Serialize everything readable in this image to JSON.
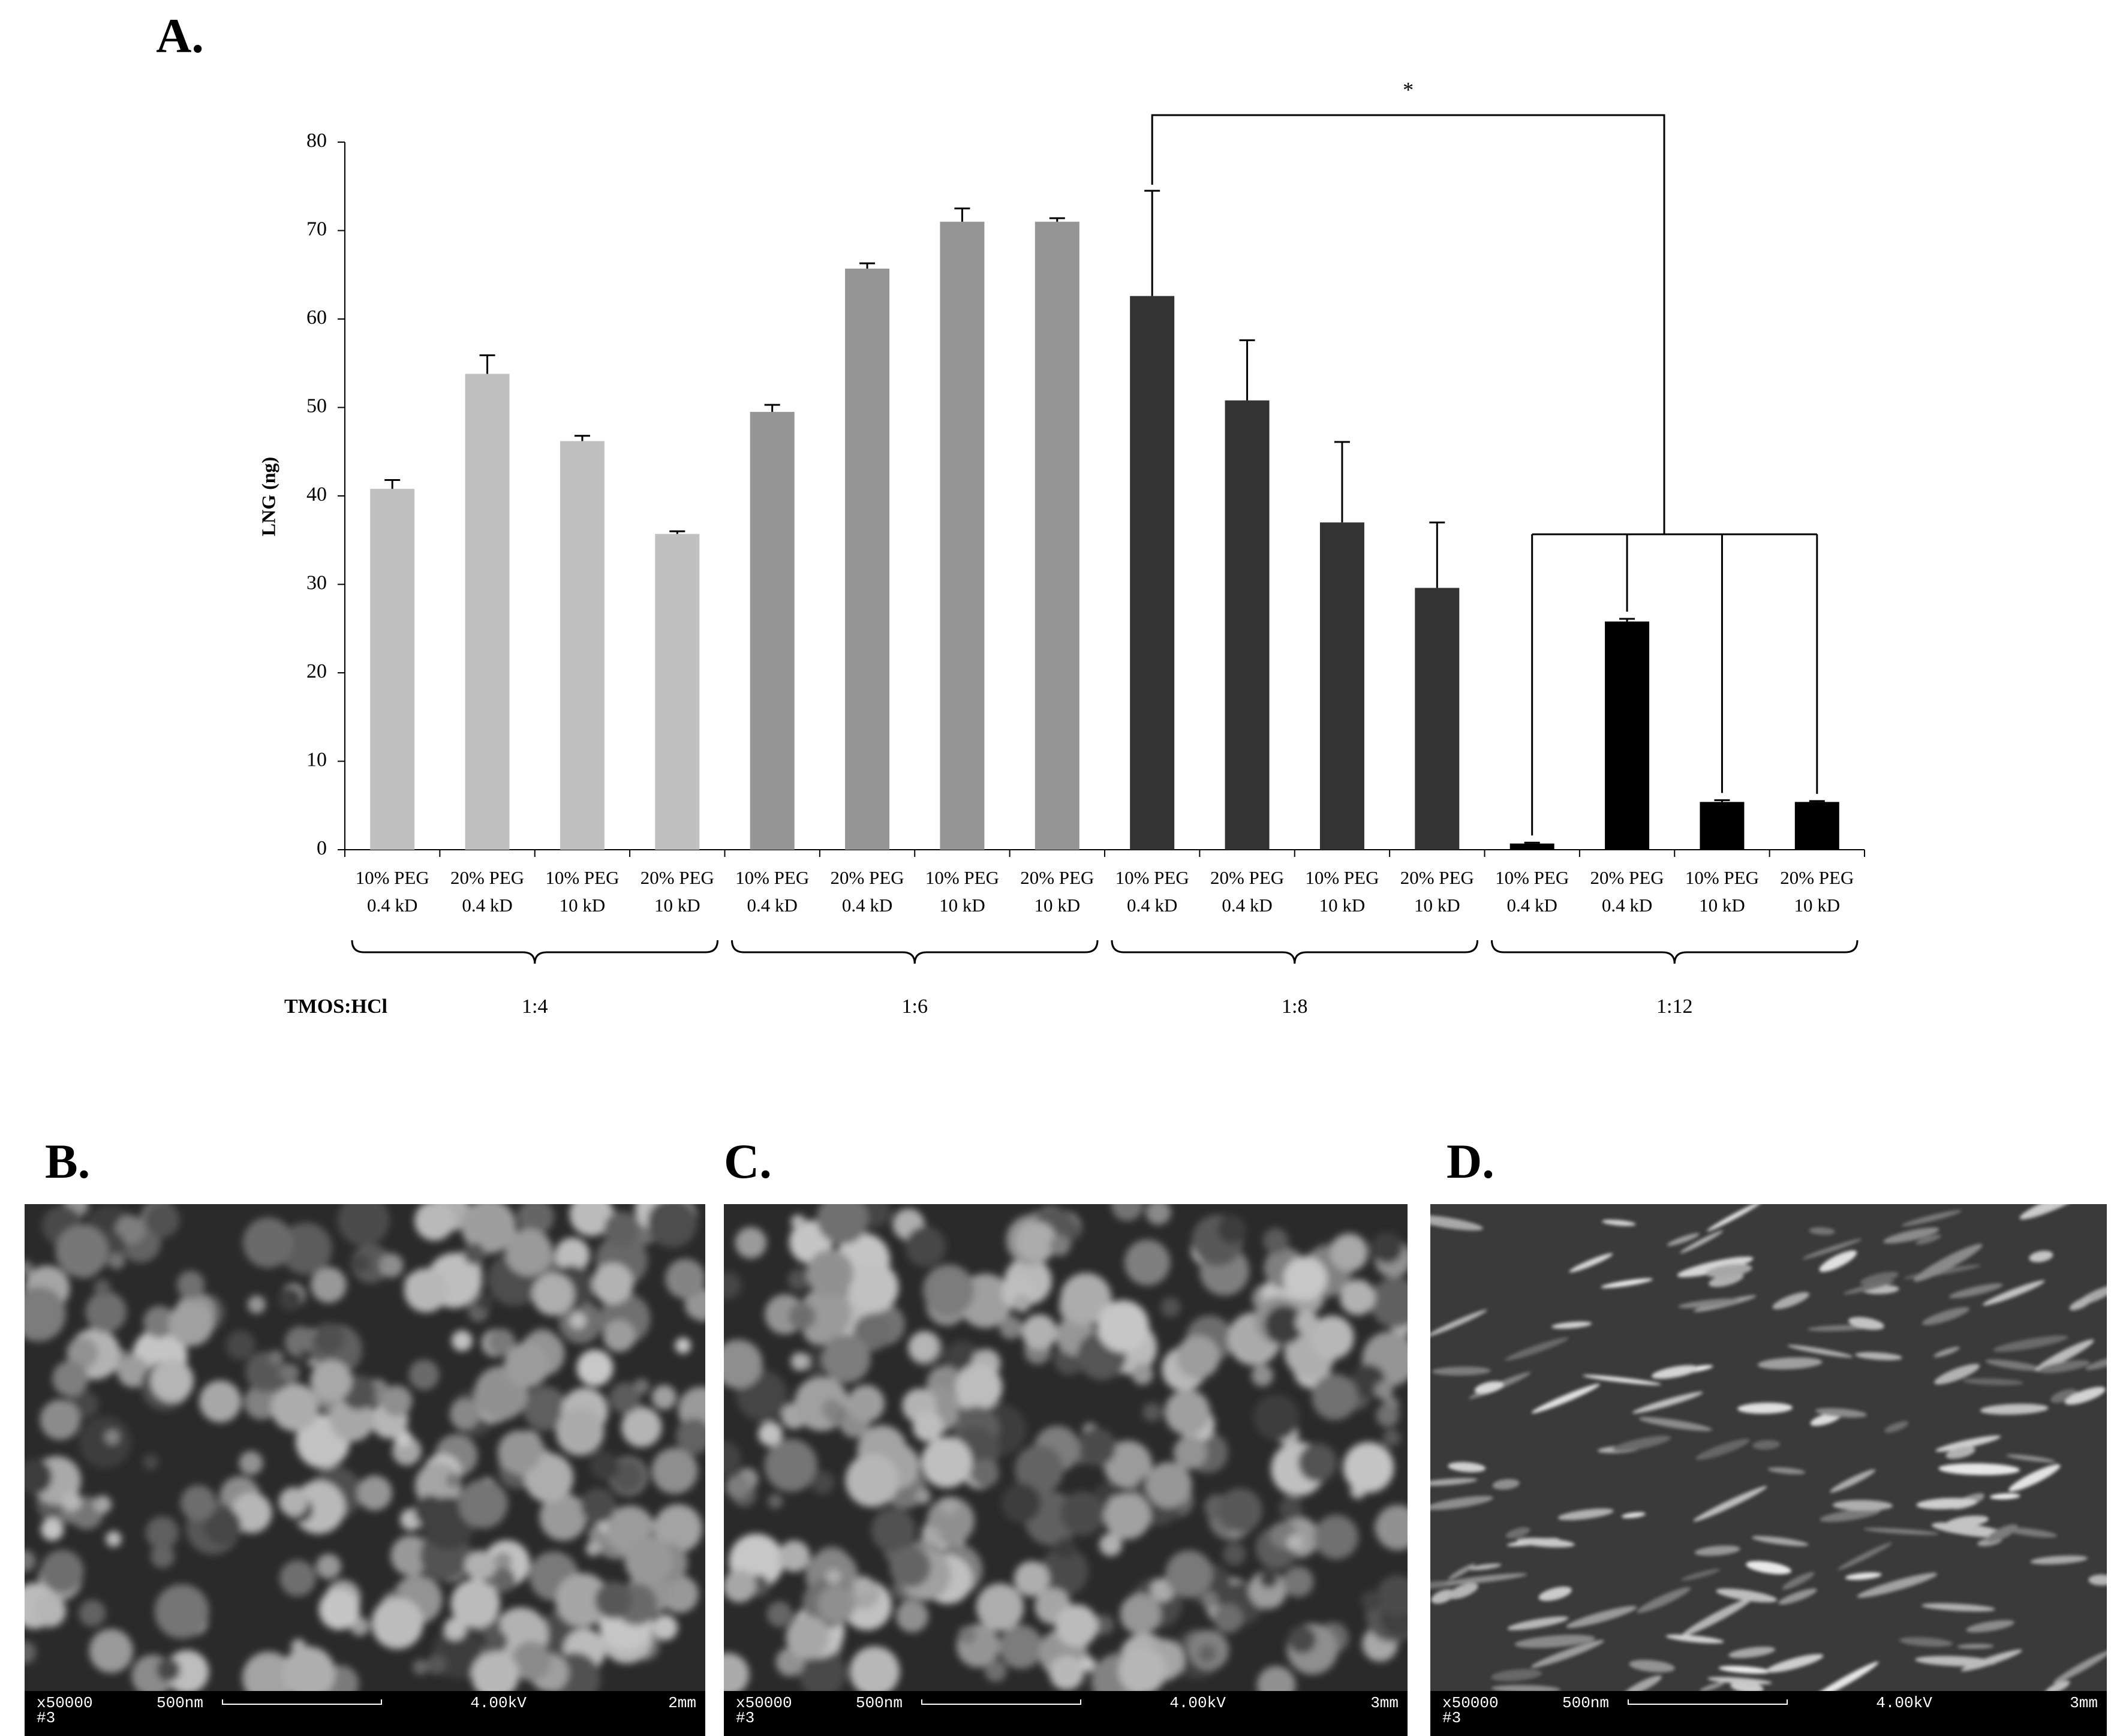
{
  "chart_data": {
    "type": "bar",
    "panel_label": "A.",
    "y_label": "LNG (ng)",
    "ylim": [
      0,
      80
    ],
    "yticks": [
      0,
      10,
      20,
      30,
      40,
      50,
      60,
      70,
      80
    ],
    "group_axis_label": "TMOS:HCl",
    "significance_label": "*",
    "groups": [
      {
        "name": "1:4",
        "color": "#c0c0c0",
        "categories": [
          [
            "10% PEG",
            "0.4 kD"
          ],
          [
            "20% PEG",
            "0.4 kD"
          ],
          [
            "10% PEG",
            "10 kD"
          ],
          [
            "20% PEG",
            "10 kD"
          ]
        ],
        "values": [
          40.8,
          53.8,
          46.2,
          35.7
        ],
        "errors": [
          1.0,
          2.1,
          0.6,
          0.3
        ]
      },
      {
        "name": "1:6",
        "color": "#959595",
        "categories": [
          [
            "10% PEG",
            "0.4 kD"
          ],
          [
            "20% PEG",
            "0.4 kD"
          ],
          [
            "10% PEG",
            "10 kD"
          ],
          [
            "20% PEG",
            "10 kD"
          ]
        ],
        "values": [
          49.5,
          65.7,
          71.0,
          71.0
        ],
        "errors": [
          0.8,
          0.6,
          1.5,
          0.4
        ]
      },
      {
        "name": "1:8",
        "color": "#333333",
        "categories": [
          [
            "10% PEG",
            "0.4 kD"
          ],
          [
            "20% PEG",
            "0.4 kD"
          ],
          [
            "10% PEG",
            "10 kD"
          ],
          [
            "20% PEG",
            "10 kD"
          ]
        ],
        "values": [
          62.6,
          50.8,
          37.0,
          29.6
        ],
        "errors": [
          11.9,
          6.8,
          9.1,
          7.4
        ]
      },
      {
        "name": "1:12",
        "color": "#000000",
        "categories": [
          [
            "10% PEG",
            "0.4 kD"
          ],
          [
            "20% PEG",
            "0.4 kD"
          ],
          [
            "10% PEG",
            "10 kD"
          ],
          [
            "20% PEG",
            "10 kD"
          ]
        ],
        "values": [
          0.7,
          25.8,
          5.4,
          5.4
        ],
        "errors": [
          0.1,
          0.3,
          0.2,
          0.1
        ]
      }
    ]
  },
  "images": [
    {
      "label": "B.",
      "info": {
        "magnification": "x50000",
        "scale": "500nm",
        "voltage": "4.00kV",
        "distance": "2mm",
        "sample": "#3"
      }
    },
    {
      "label": "C.",
      "info": {
        "magnification": "x50000",
        "scale": "500nm",
        "voltage": "4.00kV",
        "distance": "3mm",
        "sample": "#3"
      }
    },
    {
      "label": "D.",
      "info": {
        "magnification": "x50000",
        "scale": "500nm",
        "voltage": "4.00kV",
        "distance": "3mm",
        "sample": "#3"
      }
    }
  ]
}
